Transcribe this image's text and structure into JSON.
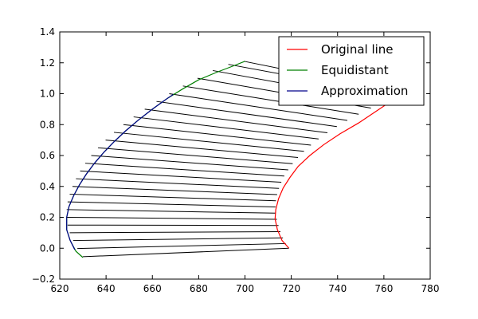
{
  "chart_data": {
    "type": "line",
    "xlim": [
      620,
      780
    ],
    "ylim": [
      -0.2,
      1.4
    ],
    "x_ticks": [
      620,
      640,
      660,
      680,
      700,
      720,
      740,
      760,
      780
    ],
    "y_ticks": [
      -0.2,
      0.0,
      0.2,
      0.4,
      0.6,
      0.8,
      1.0,
      1.2,
      1.4
    ],
    "x_tick_labels": [
      "620",
      "640",
      "660",
      "680",
      "700",
      "720",
      "740",
      "760",
      "780"
    ],
    "y_tick_labels": [
      "−0.2",
      "0.0",
      "0.2",
      "0.4",
      "0.6",
      "0.8",
      "1.0",
      "1.2",
      "1.4"
    ],
    "grid": false,
    "legend_position": "top-right",
    "series": [
      {
        "name": "Original line",
        "color": "#ff0000",
        "points": [
          [
            719,
            0.0
          ],
          [
            716,
            0.05
          ],
          [
            714,
            0.12
          ],
          [
            713,
            0.19
          ],
          [
            713.3,
            0.25
          ],
          [
            714.5,
            0.32
          ],
          [
            716.5,
            0.39
          ],
          [
            719.5,
            0.46
          ],
          [
            723,
            0.53
          ],
          [
            728,
            0.6
          ],
          [
            734,
            0.67
          ],
          [
            741,
            0.74
          ],
          [
            749,
            0.81
          ],
          [
            756,
            0.88
          ],
          [
            763,
            0.95
          ],
          [
            769,
            1.0
          ]
        ]
      },
      {
        "name": "Equidistant",
        "color": "#008000",
        "points": [
          [
            630,
            -0.06
          ],
          [
            627,
            -0.02
          ],
          [
            624.5,
            0.05
          ],
          [
            623,
            0.12
          ],
          [
            623,
            0.2
          ],
          [
            624,
            0.27
          ],
          [
            626,
            0.34
          ],
          [
            628.5,
            0.41
          ],
          [
            631.5,
            0.48
          ],
          [
            635,
            0.55
          ],
          [
            639,
            0.62
          ],
          [
            643.5,
            0.69
          ],
          [
            648.5,
            0.76
          ],
          [
            654,
            0.83
          ],
          [
            660,
            0.9
          ],
          [
            666.5,
            0.97
          ],
          [
            673,
            1.03
          ],
          [
            680,
            1.09
          ],
          [
            688,
            1.14
          ],
          [
            695,
            1.18
          ],
          [
            700,
            1.21
          ]
        ]
      },
      {
        "name": "Approximation",
        "color": "#00008b",
        "points": [
          [
            626.5,
            -0.01
          ],
          [
            624.5,
            0.05
          ],
          [
            623,
            0.12
          ],
          [
            623,
            0.2
          ],
          [
            624,
            0.27
          ],
          [
            626,
            0.34
          ],
          [
            628.5,
            0.41
          ],
          [
            631.5,
            0.48
          ],
          [
            635,
            0.55
          ],
          [
            639,
            0.62
          ],
          [
            643.5,
            0.69
          ],
          [
            648.5,
            0.76
          ],
          [
            654,
            0.83
          ],
          [
            660,
            0.9
          ],
          [
            666.5,
            0.97
          ],
          [
            669,
            0.995
          ]
        ]
      }
    ],
    "connectors": {
      "color": "#000000",
      "segments": [
        [
          [
            719.0,
            0.0
          ],
          [
            630,
            -0.055
          ]
        ],
        [
          [
            717.6,
            0.03
          ],
          [
            627.6,
            -0.002
          ]
        ],
        [
          [
            716.4,
            0.067
          ],
          [
            625.8,
            0.05
          ]
        ],
        [
          [
            715.3,
            0.107
          ],
          [
            624.3,
            0.1
          ]
        ],
        [
          [
            714.5,
            0.147
          ],
          [
            623.4,
            0.15
          ]
        ],
        [
          [
            713.8,
            0.187
          ],
          [
            623.0,
            0.2
          ]
        ],
        [
          [
            713.3,
            0.227
          ],
          [
            623.0,
            0.25
          ]
        ],
        [
          [
            713.2,
            0.267
          ],
          [
            623.4,
            0.3
          ]
        ],
        [
          [
            713.4,
            0.307
          ],
          [
            624.3,
            0.35
          ]
        ],
        [
          [
            713.9,
            0.347
          ],
          [
            625.5,
            0.4
          ]
        ],
        [
          [
            714.7,
            0.387
          ],
          [
            627.0,
            0.45
          ]
        ],
        [
          [
            715.7,
            0.427
          ],
          [
            628.8,
            0.5
          ]
        ],
        [
          [
            717.0,
            0.467
          ],
          [
            631.0,
            0.55
          ]
        ],
        [
          [
            718.7,
            0.507
          ],
          [
            633.6,
            0.6
          ]
        ],
        [
          [
            720.6,
            0.547
          ],
          [
            636.5,
            0.65
          ]
        ],
        [
          [
            722.9,
            0.587
          ],
          [
            639.8,
            0.7
          ]
        ],
        [
          [
            725.5,
            0.627
          ],
          [
            643.4,
            0.75
          ]
        ],
        [
          [
            728.5,
            0.667
          ],
          [
            647.5,
            0.8
          ]
        ],
        [
          [
            731.8,
            0.707
          ],
          [
            651.9,
            0.85
          ]
        ],
        [
          [
            735.6,
            0.747
          ],
          [
            656.7,
            0.9
          ]
        ],
        [
          [
            739.7,
            0.787
          ],
          [
            661.8,
            0.95
          ]
        ],
        [
          [
            744.2,
            0.827
          ],
          [
            667.3,
            1.0
          ]
        ],
        [
          [
            749.1,
            0.867
          ],
          [
            673.2,
            1.05
          ]
        ],
        [
          [
            754.4,
            0.907
          ],
          [
            679.5,
            1.1
          ]
        ],
        [
          [
            760.1,
            0.947
          ],
          [
            686.1,
            1.15
          ]
        ],
        [
          [
            766.2,
            0.987
          ],
          [
            692.8,
            1.19
          ]
        ],
        [
          [
            769.0,
            1.0
          ],
          [
            699.5,
            1.21
          ]
        ]
      ]
    }
  }
}
